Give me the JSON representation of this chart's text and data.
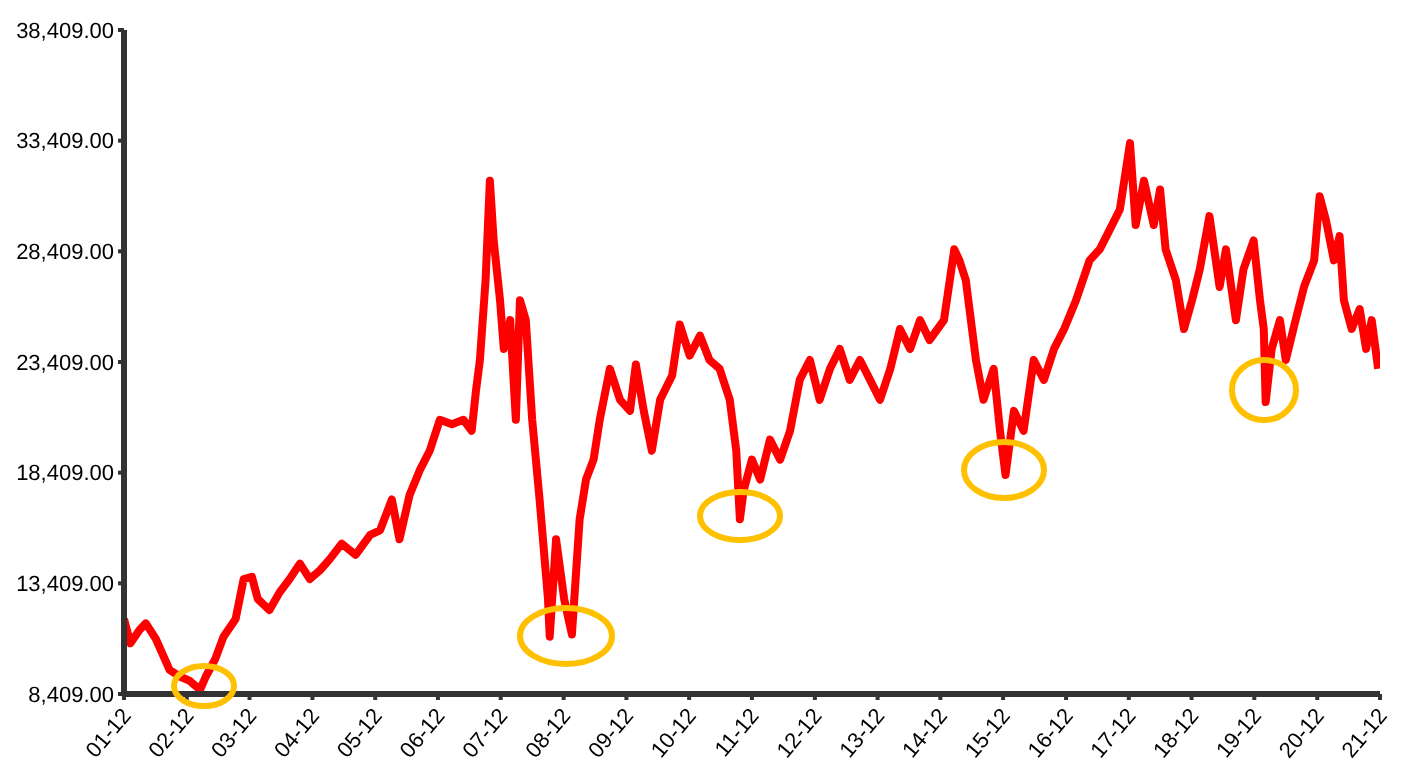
{
  "chart_data": {
    "type": "line",
    "x": [
      "2001-12-01",
      "2002-01-07",
      "2002-03-01",
      "2002-04-07",
      "2002-06-04",
      "2002-08-23",
      "2002-10-21",
      "2002-12-19",
      "2003-02-16",
      "2003-03-22",
      "2003-05-16",
      "2003-07-03",
      "2003-09-11",
      "2003-10-28",
      "2003-12-15",
      "2004-01-18",
      "2004-03-26",
      "2004-05-24",
      "2004-07-21",
      "2004-09-19",
      "2004-11-16",
      "2005-01-14",
      "2005-03-12",
      "2005-05-20",
      "2005-08-09",
      "2005-11-02",
      "2005-12-29",
      "2006-03-08",
      "2006-04-21",
      "2006-06-19",
      "2006-08-16",
      "2006-10-14",
      "2006-12-12",
      "2007-02-20",
      "2007-04-28",
      "2007-06-15",
      "2007-07-10",
      "2007-08-02",
      "2007-09-04",
      "2007-09-29",
      "2007-10-21",
      "2007-11-27",
      "2007-12-19",
      "2008-01-25",
      "2008-02-27",
      "2008-03-22",
      "2008-04-25",
      "2008-06-01",
      "2008-07-14",
      "2008-09-01",
      "2008-09-11",
      "2008-10-18",
      "2008-12-04",
      "2009-01-18",
      "2009-03-04",
      "2009-04-10",
      "2009-05-24",
      "2009-06-29",
      "2009-08-27",
      "2009-10-25",
      "2009-12-22",
      "2010-01-25",
      "2010-03-12",
      "2010-04-28",
      "2010-06-15",
      "2010-08-24",
      "2010-10-07",
      "2010-12-04",
      "2011-02-02",
      "2011-03-29",
      "2011-05-27",
      "2011-07-25",
      "2011-09-01",
      "2011-09-22",
      "2011-10-14",
      "2011-12-01",
      "2012-01-18",
      "2012-03-15",
      "2012-05-13",
      "2012-07-10",
      "2012-09-04",
      "2012-11-02",
      "2012-12-29",
      "2013-02-27",
      "2013-04-25",
      "2013-06-22",
      "2013-08-20",
      "2013-10-18",
      "2013-12-15",
      "2014-02-13",
      "2014-04-10",
      "2014-06-08",
      "2014-08-05",
      "2014-09-29",
      "2014-12-22",
      "2015-02-20",
      "2015-03-22",
      "2015-04-28",
      "2015-06-26",
      "2015-08-09",
      "2015-10-07",
      "2015-11-13",
      "2015-12-15",
      "2016-02-02",
      "2016-03-29",
      "2016-05-27",
      "2016-07-25",
      "2016-09-22",
      "2016-11-20",
      "2017-01-28",
      "2017-04-17",
      "2017-06-15",
      "2017-08-13",
      "2017-10-10",
      "2017-12-08",
      "2018-01-10",
      "2018-02-27",
      "2018-04-25",
      "2018-06-01",
      "2018-07-03",
      "2018-09-01",
      "2018-10-18",
      "2018-12-04",
      "2019-01-18",
      "2019-03-15",
      "2019-05-13",
      "2019-06-19",
      "2019-08-16",
      "2019-09-29",
      "2019-11-27",
      "2020-01-03",
      "2020-01-25",
      "2020-02-05",
      "2020-03-11",
      "2020-04-28",
      "2020-06-01",
      "2020-07-28",
      "2020-09-15",
      "2020-11-13",
      "2020-12-15",
      "2021-01-21",
      "2021-03-08",
      "2021-04-10",
      "2021-05-05",
      "2021-06-19",
      "2021-08-05",
      "2021-09-11",
      "2021-10-14",
      "2021-11-20"
    ],
    "series": [
      {
        "color": "#ff0000",
        "values": [
          11800,
          10700,
          11300,
          11600,
          10900,
          9500,
          9200,
          9000,
          8600,
          9200,
          10000,
          11000,
          11800,
          13600,
          13700,
          12700,
          12200,
          13000,
          13600,
          14300,
          13600,
          14000,
          14500,
          15200,
          14700,
          15600,
          15800,
          17200,
          15400,
          17400,
          18500,
          19400,
          20800,
          20600,
          20800,
          20300,
          22100,
          23500,
          27100,
          31600,
          28900,
          26200,
          24000,
          25300,
          20800,
          26200,
          25300,
          20800,
          17200,
          12700,
          11000,
          15400,
          12700,
          11100,
          16300,
          18100,
          19000,
          20800,
          23100,
          21700,
          21200,
          23300,
          21200,
          19400,
          21700,
          22800,
          25100,
          23700,
          24600,
          23500,
          23100,
          21700,
          19400,
          16300,
          17600,
          19000,
          18100,
          19900,
          19000,
          20300,
          22600,
          23500,
          21700,
          23100,
          24000,
          22600,
          23500,
          22600,
          21700,
          23100,
          24900,
          24000,
          25300,
          24400,
          25300,
          28500,
          28000,
          27100,
          23500,
          21700,
          23100,
          20300,
          18300,
          21200,
          20300,
          23500,
          22600,
          24000,
          24900,
          26200,
          28000,
          28500,
          29400,
          30300,
          33300,
          29600,
          31600,
          29600,
          31200,
          28500,
          27100,
          24900,
          26200,
          27600,
          30000,
          26800,
          28500,
          25300,
          27600,
          28900,
          26200,
          24900,
          21600,
          24000,
          25300,
          23500,
          25300,
          26800,
          28000,
          30900,
          29800,
          28000,
          29100,
          26200,
          24900,
          25800,
          24000,
          25300,
          23100
        ]
      }
    ],
    "xlim": [
      "2001-12",
      "2021-12"
    ],
    "xticks": [
      {
        "value": "2001-12",
        "label": "01-12"
      },
      {
        "value": "2002-12",
        "label": "02-12"
      },
      {
        "value": "2003-12",
        "label": "03-12"
      },
      {
        "value": "2004-12",
        "label": "04-12"
      },
      {
        "value": "2005-12",
        "label": "05-12"
      },
      {
        "value": "2006-12",
        "label": "06-12"
      },
      {
        "value": "2007-12",
        "label": "07-12"
      },
      {
        "value": "2008-12",
        "label": "08-12"
      },
      {
        "value": "2009-12",
        "label": "09-12"
      },
      {
        "value": "2010-12",
        "label": "10-12"
      },
      {
        "value": "2011-12",
        "label": "11-12"
      },
      {
        "value": "2012-12",
        "label": "12-12"
      },
      {
        "value": "2013-12",
        "label": "13-12"
      },
      {
        "value": "2014-12",
        "label": "14-12"
      },
      {
        "value": "2015-12",
        "label": "15-12"
      },
      {
        "value": "2016-12",
        "label": "16-12"
      },
      {
        "value": "2017-12",
        "label": "17-12"
      },
      {
        "value": "2018-12",
        "label": "18-12"
      },
      {
        "value": "2019-12",
        "label": "19-12"
      },
      {
        "value": "2020-12",
        "label": "20-12"
      },
      {
        "value": "2021-12",
        "label": "21-12"
      }
    ],
    "ylim": [
      8409,
      38409
    ],
    "yticks": [
      {
        "value": 8409,
        "label": "8,409.00"
      },
      {
        "value": 13409,
        "label": "13,409.00"
      },
      {
        "value": 18409,
        "label": "18,409.00"
      },
      {
        "value": 23409,
        "label": "23,409.00"
      },
      {
        "value": 28409,
        "label": "28,409.00"
      },
      {
        "value": 33409,
        "label": "33,409.00"
      },
      {
        "value": 38409,
        "label": "38,409.00"
      }
    ],
    "grid": false,
    "legend": false,
    "marker": "none",
    "line_style": "solid"
  }
}
